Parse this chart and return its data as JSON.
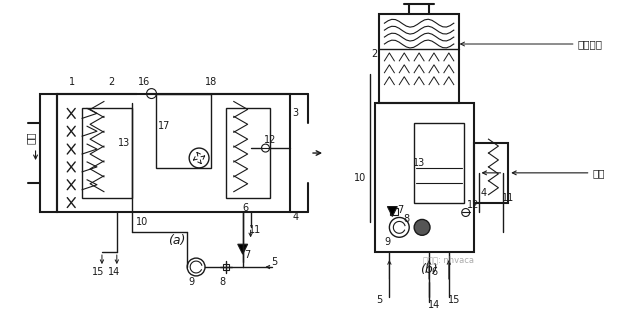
{
  "title": "",
  "bg_color": "#ffffff",
  "line_color": "#1a1a1a",
  "fig_width": 6.4,
  "fig_height": 3.13,
  "label_a": "(a)",
  "label_b": "(b)",
  "text_kongqi": "空气",
  "text_xinfeng": "新风入口",
  "text_huifeng": "回风",
  "watermark": "微信号: nhvaca"
}
